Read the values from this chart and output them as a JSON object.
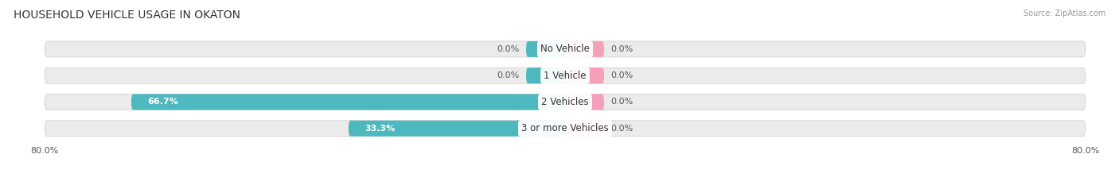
{
  "title": "HOUSEHOLD VEHICLE USAGE IN OKATON",
  "source": "Source: ZipAtlas.com",
  "bars": [
    {
      "label": "No Vehicle",
      "owner": 0.0,
      "renter": 0.0
    },
    {
      "label": "1 Vehicle",
      "owner": 0.0,
      "renter": 0.0
    },
    {
      "label": "2 Vehicles",
      "owner": 66.7,
      "renter": 0.0
    },
    {
      "label": "3 or more Vehicles",
      "owner": 33.3,
      "renter": 0.0
    }
  ],
  "owner_color": "#4db8be",
  "renter_color": "#f4a0b8",
  "bg_color": "#ebebeb",
  "xlim": 80.0,
  "min_bar_width": 6.0,
  "title_fontsize": 10,
  "label_fontsize": 8,
  "tick_fontsize": 8
}
